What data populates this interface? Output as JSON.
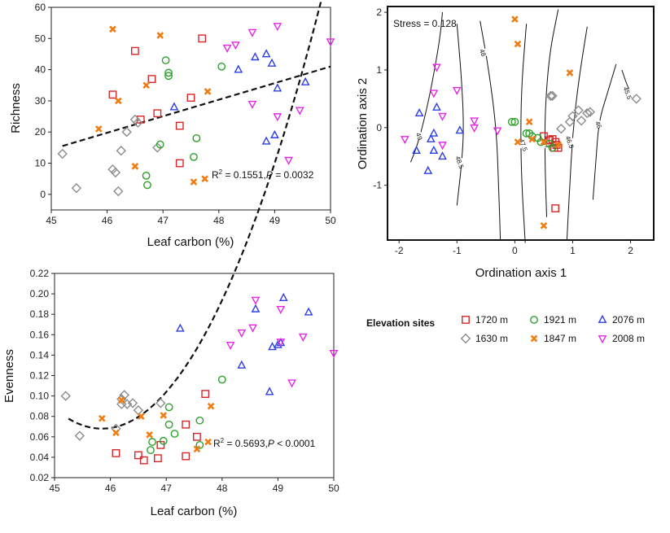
{
  "colors": {
    "m1630": "#8c8c8c",
    "m1720": "#d62728",
    "m1847": "#f07d14",
    "m1921": "#2ca02c",
    "m2008": "#e628e6",
    "m2076": "#2c3fe6"
  },
  "legend": {
    "title": "Elevation sites",
    "items": [
      {
        "key": "m1720",
        "label": "1720 m",
        "marker": "square"
      },
      {
        "key": "m1630",
        "label": "1630 m",
        "marker": "diamond"
      },
      {
        "key": "m1921",
        "label": "1921 m",
        "marker": "circle"
      },
      {
        "key": "m1847",
        "label": "1847 m",
        "marker": "cross"
      },
      {
        "key": "m2076",
        "label": "2076 m",
        "marker": "triangle-up"
      },
      {
        "key": "m2008",
        "label": "2008 m",
        "marker": "triangle-down"
      }
    ]
  },
  "chart_data": [
    {
      "type": "scatter",
      "id": "richness",
      "xlabel": "Leaf carbon (%)",
      "ylabel": "Richness",
      "xlim": [
        45,
        50
      ],
      "ylim": [
        -5,
        60
      ],
      "xticks": [
        45,
        46,
        47,
        48,
        49,
        50
      ],
      "yticks": [
        0,
        10,
        20,
        30,
        40,
        50,
        60
      ],
      "annotation": {
        "r2_prefix": "R",
        "r2_sup": "2",
        "r2_value": " = 0.1551,",
        "p_label": "P",
        "p_value": " = 0.0032"
      },
      "fit": {
        "type": "linear",
        "x": [
          45.2,
          50.0
        ],
        "y": [
          15.5,
          41.0
        ]
      },
      "series": [
        {
          "key": "m1720",
          "points": [
            [
              46.1,
              32
            ],
            [
              46.5,
              46
            ],
            [
              46.6,
              24
            ],
            [
              46.8,
              37
            ],
            [
              46.9,
              26
            ],
            [
              47.3,
              22
            ],
            [
              47.3,
              10
            ],
            [
              47.5,
              31
            ],
            [
              47.7,
              50
            ]
          ]
        },
        {
          "key": "m1630",
          "points": [
            [
              45.2,
              13
            ],
            [
              45.45,
              2
            ],
            [
              46.1,
              8
            ],
            [
              46.15,
              7
            ],
            [
              46.25,
              14
            ],
            [
              46.35,
              20
            ],
            [
              46.5,
              24
            ],
            [
              46.55,
              23
            ],
            [
              46.9,
              15
            ],
            [
              46.2,
              1
            ]
          ]
        },
        {
          "key": "m1921",
          "points": [
            [
              46.7,
              6
            ],
            [
              46.72,
              3
            ],
            [
              46.95,
              16
            ],
            [
              47.05,
              43
            ],
            [
              47.1,
              38
            ],
            [
              47.1,
              39
            ],
            [
              47.55,
              12
            ],
            [
              47.6,
              18
            ],
            [
              48.05,
              41
            ]
          ]
        },
        {
          "key": "m1847",
          "points": [
            [
              46.1,
              53
            ],
            [
              45.85,
              21
            ],
            [
              46.2,
              30
            ],
            [
              46.5,
              9
            ],
            [
              46.7,
              35
            ],
            [
              46.95,
              51
            ],
            [
              47.55,
              4
            ],
            [
              47.75,
              5
            ],
            [
              47.8,
              33
            ]
          ]
        },
        {
          "key": "m2076",
          "points": [
            [
              47.2,
              28
            ],
            [
              48.35,
              40
            ],
            [
              48.65,
              44
            ],
            [
              48.85,
              45
            ],
            [
              48.85,
              17
            ],
            [
              48.95,
              42
            ],
            [
              49.0,
              19
            ],
            [
              49.05,
              34
            ],
            [
              49.55,
              36
            ]
          ]
        },
        {
          "key": "m2008",
          "points": [
            [
              48.15,
              47
            ],
            [
              48.3,
              48
            ],
            [
              48.6,
              52
            ],
            [
              48.6,
              29
            ],
            [
              49.05,
              54
            ],
            [
              49.05,
              25
            ],
            [
              49.25,
              11
            ],
            [
              49.45,
              27
            ],
            [
              50.0,
              49
            ]
          ]
        }
      ]
    },
    {
      "type": "scatter",
      "id": "nmds",
      "xlabel": "Ordination axis 1",
      "ylabel": "Ordination axis 2",
      "xlim": [
        -2.2,
        2.4
      ],
      "ylim": [
        -1.95,
        2.1
      ],
      "xticks": [
        -2,
        -1,
        0,
        1,
        2
      ],
      "yticks": [
        -1,
        0,
        1,
        2
      ],
      "stress_label": "Stress = 0.128",
      "contours": [
        {
          "label": "49",
          "label_x": -1.65,
          "label_y": -0.15,
          "points": [
            [
              -1.8,
              -0.6
            ],
            [
              -1.7,
              -0.35
            ],
            [
              -1.6,
              0.0
            ],
            [
              -1.45,
              0.65
            ],
            [
              -1.3,
              1.5
            ],
            [
              -1.25,
              2.0
            ]
          ]
        },
        {
          "label": "48.5",
          "label_x": -0.95,
          "label_y": -0.6,
          "points": [
            [
              -1.0,
              -1.35
            ],
            [
              -0.92,
              -0.65
            ],
            [
              -0.88,
              0.0
            ],
            [
              -0.92,
              0.85
            ],
            [
              -1.0,
              1.8
            ]
          ]
        },
        {
          "label": "48",
          "label_x": -0.55,
          "label_y": 1.3,
          "points": [
            [
              -0.25,
              -1.95
            ],
            [
              -0.28,
              -1.0
            ],
            [
              -0.32,
              0.0
            ],
            [
              -0.45,
              1.0
            ],
            [
              -0.6,
              1.85
            ]
          ]
        },
        {
          "label": "47.5",
          "label_x": 0.15,
          "label_y": -0.3,
          "points": [
            [
              0.18,
              -2.0
            ],
            [
              0.12,
              -1.0
            ],
            [
              0.1,
              -0.1
            ],
            [
              0.12,
              0.8
            ],
            [
              0.2,
              1.8
            ]
          ]
        },
        {
          "label": "47",
          "label_x": 0.55,
          "label_y": -0.3,
          "points": [
            [
              0.55,
              -1.55
            ],
            [
              0.52,
              -0.6
            ],
            [
              0.52,
              0.3
            ],
            [
              0.6,
              1.3
            ],
            [
              0.75,
              2.05
            ]
          ]
        },
        {
          "label": "46.5",
          "label_x": 0.95,
          "label_y": -0.25,
          "points": [
            [
              0.9,
              -1.95
            ],
            [
              0.95,
              -1.0
            ],
            [
              1.0,
              -0.1
            ],
            [
              1.1,
              0.8
            ],
            [
              1.25,
              1.75
            ]
          ]
        },
        {
          "label": "46",
          "label_x": 1.45,
          "label_y": 0.05,
          "points": [
            [
              1.35,
              -1.25
            ],
            [
              1.4,
              -0.6
            ],
            [
              1.45,
              0.1
            ],
            [
              1.6,
              0.6
            ],
            [
              1.75,
              1.1
            ]
          ]
        },
        {
          "label": "45.5",
          "label_x": 1.95,
          "label_y": 0.6,
          "points": [
            [
              1.85,
              1.0
            ],
            [
              1.95,
              0.7
            ],
            [
              2.05,
              0.55
            ]
          ]
        }
      ],
      "series": [
        {
          "key": "m1720",
          "points": [
            [
              0.5,
              -0.15
            ],
            [
              0.6,
              -0.22
            ],
            [
              0.65,
              -0.2
            ],
            [
              0.7,
              -0.25
            ],
            [
              0.72,
              -0.3
            ],
            [
              0.75,
              -0.35
            ],
            [
              0.68,
              -0.35
            ],
            [
              0.7,
              -1.4
            ]
          ]
        },
        {
          "key": "m1630",
          "points": [
            [
              0.62,
              0.55
            ],
            [
              0.65,
              0.55
            ],
            [
              0.8,
              -0.02
            ],
            [
              0.95,
              0.1
            ],
            [
              1.0,
              0.2
            ],
            [
              1.1,
              0.3
            ],
            [
              1.15,
              0.12
            ],
            [
              1.25,
              0.25
            ],
            [
              1.3,
              0.27
            ],
            [
              2.1,
              0.5
            ]
          ]
        },
        {
          "key": "m1921",
          "points": [
            [
              -0.05,
              0.1
            ],
            [
              0.0,
              0.1
            ],
            [
              0.2,
              -0.1
            ],
            [
              0.3,
              -0.15
            ],
            [
              0.4,
              -0.18
            ],
            [
              0.45,
              -0.25
            ],
            [
              0.6,
              -0.28
            ],
            [
              0.65,
              -0.35
            ],
            [
              0.25,
              -0.1
            ]
          ]
        },
        {
          "key": "m1847",
          "points": [
            [
              0.0,
              1.88
            ],
            [
              0.05,
              1.45
            ],
            [
              0.05,
              -0.25
            ],
            [
              0.25,
              0.1
            ],
            [
              0.3,
              -0.2
            ],
            [
              0.5,
              -0.25
            ],
            [
              0.75,
              -0.3
            ],
            [
              0.95,
              0.95
            ],
            [
              0.5,
              -1.7
            ]
          ]
        },
        {
          "key": "m2076",
          "points": [
            [
              -1.7,
              -0.4
            ],
            [
              -1.65,
              0.25
            ],
            [
              -1.5,
              -0.75
            ],
            [
              -1.45,
              -0.2
            ],
            [
              -1.4,
              -0.1
            ],
            [
              -1.4,
              -0.4
            ],
            [
              -1.35,
              0.35
            ],
            [
              -1.25,
              -0.5
            ],
            [
              -0.95,
              -0.05
            ]
          ]
        },
        {
          "key": "m2008",
          "points": [
            [
              -1.9,
              -0.2
            ],
            [
              -1.4,
              0.6
            ],
            [
              -1.35,
              1.05
            ],
            [
              -1.25,
              0.2
            ],
            [
              -1.25,
              -0.3
            ],
            [
              -1.0,
              0.65
            ],
            [
              -0.7,
              0.12
            ],
            [
              -0.7,
              0.0
            ],
            [
              -0.3,
              -0.05
            ]
          ]
        }
      ]
    },
    {
      "type": "scatter",
      "id": "evenness",
      "xlabel": "Leaf carbon (%)",
      "ylabel": "Evenness",
      "xlim": [
        45,
        50
      ],
      "ylim": [
        0.02,
        0.22
      ],
      "xticks": [
        45,
        46,
        47,
        48,
        49,
        50
      ],
      "yticks": [
        0.02,
        0.04,
        0.06,
        0.08,
        0.1,
        0.12,
        0.14,
        0.16,
        0.18,
        0.2,
        0.22
      ],
      "annotation": {
        "r2_prefix": "R",
        "r2_sup": "2",
        "r2_value": " = 0.5693,",
        "p_label": "P",
        "p_value": " < 0.0001"
      },
      "fit": {
        "type": "quadratic",
        "x_min": 45.25,
        "x_max": 49.95,
        "vertex_x": 45.85,
        "vertex_y": 0.068,
        "a": 0.0272
      },
      "series": [
        {
          "key": "m1720",
          "points": [
            [
              46.1,
              0.044
            ],
            [
              46.5,
              0.042
            ],
            [
              46.6,
              0.037
            ],
            [
              46.85,
              0.039
            ],
            [
              46.9,
              0.052
            ],
            [
              47.35,
              0.072
            ],
            [
              47.35,
              0.041
            ],
            [
              47.55,
              0.06
            ],
            [
              47.7,
              0.102
            ]
          ]
        },
        {
          "key": "m1630",
          "points": [
            [
              45.2,
              0.1
            ],
            [
              45.45,
              0.061
            ],
            [
              46.1,
              0.068
            ],
            [
              46.2,
              0.092
            ],
            [
              46.25,
              0.101
            ],
            [
              46.3,
              0.092
            ],
            [
              46.4,
              0.093
            ],
            [
              46.5,
              0.086
            ],
            [
              46.9,
              0.093
            ],
            [
              46.2,
              0.097
            ]
          ]
        },
        {
          "key": "m1921",
          "points": [
            [
              46.75,
              0.055
            ],
            [
              46.72,
              0.047
            ],
            [
              46.95,
              0.056
            ],
            [
              47.05,
              0.089
            ],
            [
              47.05,
              0.072
            ],
            [
              47.15,
              0.063
            ],
            [
              47.6,
              0.076
            ],
            [
              47.6,
              0.052
            ],
            [
              48.0,
              0.116
            ]
          ]
        },
        {
          "key": "m1847",
          "points": [
            [
              45.85,
              0.078
            ],
            [
              46.1,
              0.064
            ],
            [
              46.2,
              0.096
            ],
            [
              46.55,
              0.08
            ],
            [
              46.7,
              0.062
            ],
            [
              46.95,
              0.081
            ],
            [
              47.55,
              0.048
            ],
            [
              47.75,
              0.055
            ],
            [
              47.8,
              0.09
            ]
          ]
        },
        {
          "key": "m2076",
          "points": [
            [
              47.25,
              0.166
            ],
            [
              48.35,
              0.13
            ],
            [
              48.6,
              0.185
            ],
            [
              48.85,
              0.104
            ],
            [
              48.9,
              0.148
            ],
            [
              49.0,
              0.15
            ],
            [
              49.1,
              0.196
            ],
            [
              49.05,
              0.152
            ],
            [
              49.55,
              0.182
            ]
          ]
        },
        {
          "key": "m2008",
          "points": [
            [
              48.15,
              0.15
            ],
            [
              48.35,
              0.162
            ],
            [
              48.55,
              0.167
            ],
            [
              48.6,
              0.194
            ],
            [
              49.05,
              0.153
            ],
            [
              49.05,
              0.185
            ],
            [
              49.25,
              0.113
            ],
            [
              49.45,
              0.158
            ],
            [
              50.0,
              0.142
            ]
          ]
        }
      ]
    }
  ]
}
